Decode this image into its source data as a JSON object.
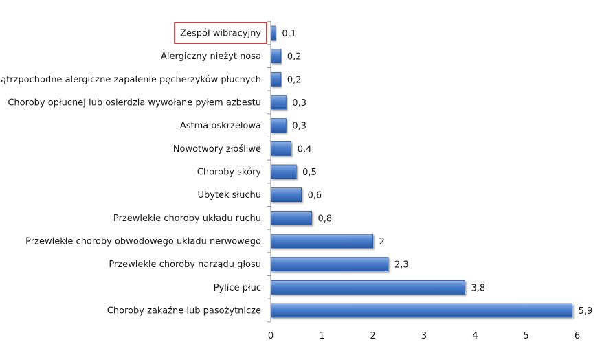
{
  "chart_data": {
    "type": "bar",
    "orientation": "horizontal",
    "categories": [
      "Zespół wibracyjny",
      "Alergiczny nieżyt nosa",
      "Zewnątrzpochodne alergiczne zapalenie pęcherzyków płucnych",
      "Choroby opłucnej lub osierdzia wywołane pyłem azbestu",
      "Astma oskrzelowa",
      "Nowotwory złośliwe",
      "Choroby skóry",
      "Ubytek słuchu",
      "Przewlekłe choroby układu ruchu",
      "Przewlekłe choroby obwodowego układu nerwowego",
      "Przewlekłe choroby narządu głosu",
      "Pylice płuc",
      "Choroby zakaźne lub pasożytnicze"
    ],
    "values": [
      0.1,
      0.2,
      0.2,
      0.3,
      0.3,
      0.4,
      0.5,
      0.6,
      0.8,
      2,
      2.3,
      3.8,
      5.9
    ],
    "data_labels": [
      "0,1",
      "0,2",
      "0,2",
      "0,3",
      "0,3",
      "0,4",
      "0,5",
      "0,6",
      "0,8",
      "2",
      "2,3",
      "3,8",
      "5,9"
    ],
    "xlim": [
      0,
      6
    ],
    "xticks": [
      0,
      1,
      2,
      3,
      4,
      5,
      6
    ],
    "xtick_labels": [
      "0",
      "1",
      "2",
      "3",
      "4",
      "5",
      "6"
    ],
    "highlighted_category": "Zespół wibracyjny",
    "grid": false,
    "bar_color": "#3f73c4",
    "highlight_color": "#b84a4a",
    "title": "",
    "xlabel": "",
    "ylabel": ""
  }
}
